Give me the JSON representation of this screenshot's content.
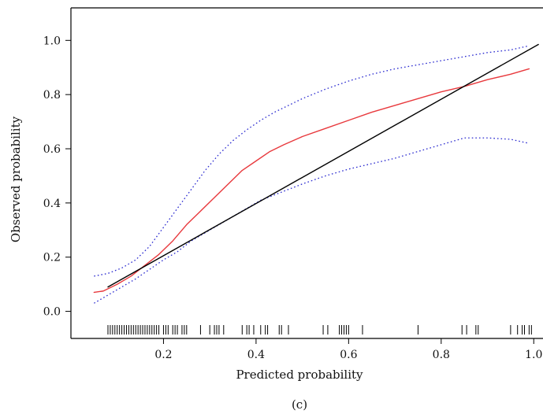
{
  "chart_data": {
    "type": "line",
    "xlabel": "Predicted probability",
    "ylabel": "Observed probability",
    "caption": "(c)",
    "xlim": [
      0.0,
      1.02
    ],
    "ylim": [
      -0.1,
      1.12
    ],
    "xticks": [
      0.2,
      0.4,
      0.6,
      0.8,
      1.0
    ],
    "xtick_labels": [
      "0.2",
      "0.4",
      "0.6",
      "0.8",
      "1.0"
    ],
    "yticks": [
      0.0,
      0.2,
      0.4,
      0.6,
      0.8,
      1.0
    ],
    "ytick_labels": [
      "0.0",
      "0.2",
      "0.4",
      "0.6",
      "0.8",
      "1.0"
    ],
    "grid": false,
    "series": [
      {
        "style": "solid",
        "color": "#e8393d",
        "x": [
          0.05,
          0.07,
          0.1,
          0.13,
          0.16,
          0.19,
          0.22,
          0.25,
          0.28,
          0.31,
          0.34,
          0.37,
          0.4,
          0.43,
          0.46,
          0.5,
          0.55,
          0.6,
          0.65,
          0.7,
          0.75,
          0.8,
          0.85,
          0.9,
          0.95,
          0.99
        ],
        "y": [
          0.07,
          0.075,
          0.1,
          0.13,
          0.17,
          0.21,
          0.26,
          0.32,
          0.37,
          0.42,
          0.47,
          0.52,
          0.555,
          0.59,
          0.615,
          0.645,
          0.675,
          0.705,
          0.735,
          0.76,
          0.785,
          0.81,
          0.83,
          0.855,
          0.875,
          0.895
        ]
      },
      {
        "style": "dotted",
        "color": "#2a2ad0",
        "x": [
          0.05,
          0.08,
          0.11,
          0.14,
          0.17,
          0.2,
          0.23,
          0.26,
          0.29,
          0.32,
          0.35,
          0.38,
          0.41,
          0.44,
          0.47,
          0.5,
          0.55,
          0.6,
          0.65,
          0.7,
          0.75,
          0.8,
          0.85,
          0.9,
          0.95,
          0.99
        ],
        "y": [
          0.13,
          0.14,
          0.16,
          0.19,
          0.24,
          0.31,
          0.38,
          0.45,
          0.52,
          0.58,
          0.63,
          0.67,
          0.705,
          0.735,
          0.76,
          0.785,
          0.82,
          0.85,
          0.875,
          0.895,
          0.91,
          0.925,
          0.94,
          0.955,
          0.965,
          0.98
        ]
      },
      {
        "style": "dotted",
        "color": "#2a2ad0",
        "x": [
          0.05,
          0.08,
          0.11,
          0.14,
          0.17,
          0.2,
          0.23,
          0.26,
          0.29,
          0.32,
          0.35,
          0.38,
          0.41,
          0.44,
          0.47,
          0.5,
          0.55,
          0.6,
          0.65,
          0.7,
          0.75,
          0.8,
          0.85,
          0.9,
          0.95,
          0.99
        ],
        "y": [
          0.03,
          0.06,
          0.09,
          0.12,
          0.155,
          0.19,
          0.22,
          0.26,
          0.29,
          0.32,
          0.35,
          0.38,
          0.41,
          0.43,
          0.45,
          0.47,
          0.5,
          0.525,
          0.545,
          0.565,
          0.59,
          0.615,
          0.64,
          0.64,
          0.635,
          0.62
        ]
      },
      {
        "style": "solid",
        "color": "#000000",
        "x": [
          0.08,
          1.01
        ],
        "y": [
          0.09,
          0.985
        ]
      }
    ],
    "rug": [
      0.08,
      0.085,
      0.09,
      0.095,
      0.1,
      0.105,
      0.11,
      0.115,
      0.12,
      0.125,
      0.13,
      0.135,
      0.14,
      0.145,
      0.15,
      0.155,
      0.16,
      0.165,
      0.17,
      0.175,
      0.18,
      0.185,
      0.19,
      0.2,
      0.205,
      0.21,
      0.22,
      0.225,
      0.23,
      0.24,
      0.245,
      0.25,
      0.28,
      0.3,
      0.31,
      0.315,
      0.32,
      0.33,
      0.37,
      0.38,
      0.385,
      0.395,
      0.41,
      0.42,
      0.425,
      0.45,
      0.455,
      0.47,
      0.545,
      0.555,
      0.58,
      0.585,
      0.59,
      0.595,
      0.6,
      0.63,
      0.75,
      0.845,
      0.855,
      0.875,
      0.88,
      0.95,
      0.965,
      0.975,
      0.98,
      0.99,
      0.995
    ]
  }
}
